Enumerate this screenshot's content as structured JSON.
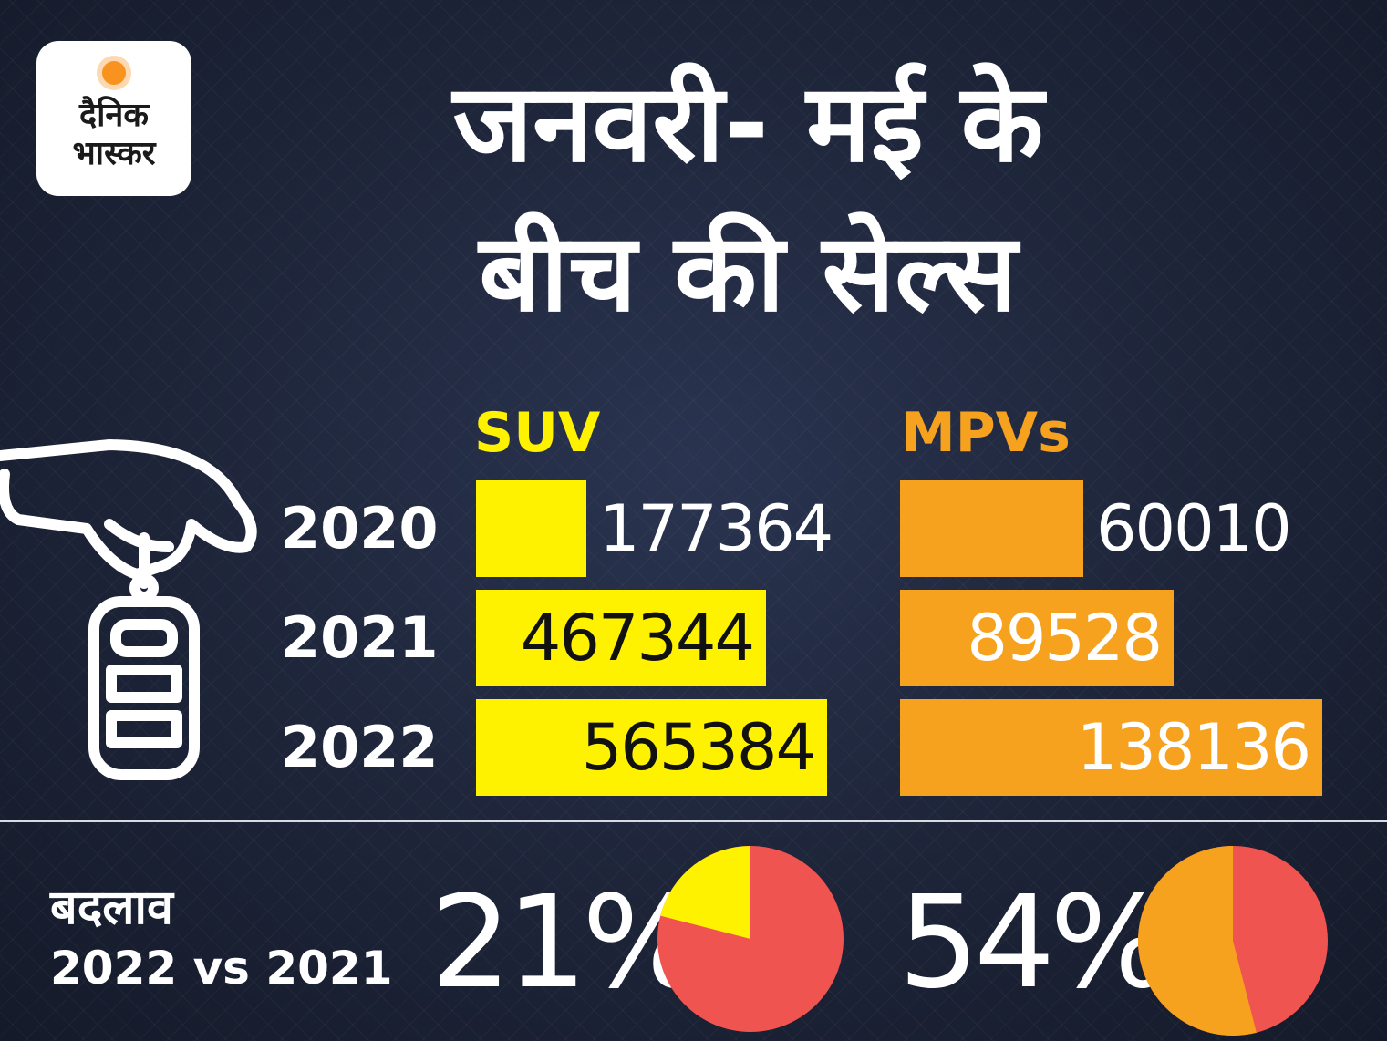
{
  "logo": {
    "line1": "दैनिक",
    "line2": "भास्कर"
  },
  "title": {
    "line1": "जनवरी- मई के",
    "line2": "बीच की सेल्स"
  },
  "colors": {
    "suv": "#fff200",
    "mpv": "#f7a21e",
    "pie_rest": "#ef5450",
    "background": "#1d2438"
  },
  "icon": "car-key-hand-icon",
  "chart_data": {
    "type": "bar",
    "categories": [
      "2020",
      "2021",
      "2022"
    ],
    "series": [
      {
        "name": "SUV",
        "values": [
          177364,
          467344,
          565384
        ]
      },
      {
        "name": "MPVs",
        "values": [
          60010,
          89528,
          138136
        ]
      }
    ],
    "value_labels": {
      "SUV": [
        "177364",
        "467344",
        "565384"
      ],
      "MPVs": [
        "60010",
        "89528",
        "138136"
      ]
    }
  },
  "change": {
    "label": "बदलाव",
    "comparison": "2022 vs 2021",
    "suv": {
      "value": 21,
      "label": "21%"
    },
    "mpv": {
      "value": 54,
      "label": "54%"
    }
  }
}
